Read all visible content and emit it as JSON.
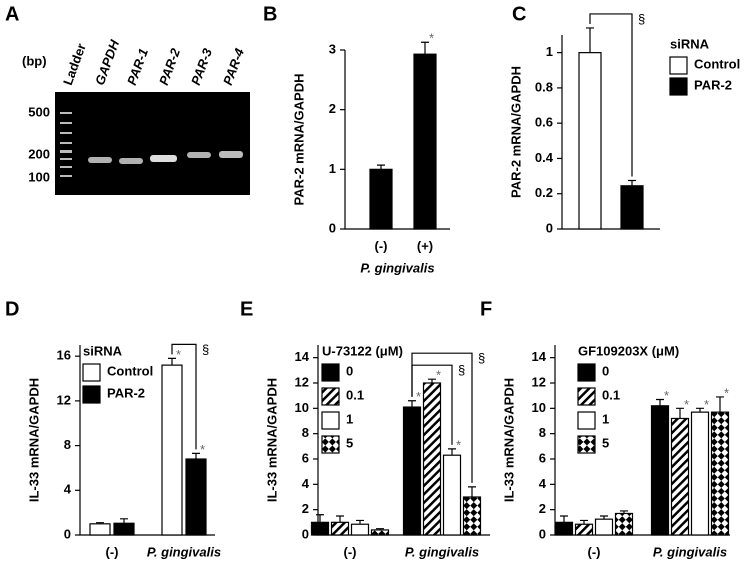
{
  "gel": {
    "panel": "A",
    "unit": "(bp)",
    "sizes": [
      "500",
      "200",
      "100"
    ],
    "lanes": [
      "Ladder",
      "GAPDH",
      "PAR-1",
      "PAR-2",
      "PAR-3",
      "PAR-4"
    ]
  },
  "chart_data": [
    {
      "type": "bar",
      "panel": "B",
      "ylabel": "PAR-2 mRNA/GAPDH",
      "xlabel": "P. gingivalis",
      "categories": [
        "(-)",
        "(+)"
      ],
      "values": [
        1.0,
        2.93
      ],
      "errors": [
        0.07,
        0.2
      ],
      "markers": [
        null,
        "*"
      ],
      "color": "#000000",
      "ylim": [
        0,
        3
      ],
      "yticks": [
        0,
        1,
        2,
        3
      ]
    },
    {
      "type": "bar",
      "panel": "C",
      "ylabel": "PAR-2 mRNA/GAPDH",
      "legend_title": "siRNA",
      "categories": [
        null
      ],
      "series": [
        {
          "name": "Control",
          "color": "#ffffff",
          "values": [
            1.0
          ],
          "errors": [
            0.14
          ]
        },
        {
          "name": "PAR-2",
          "color": "#000000",
          "values": [
            0.245
          ],
          "errors": [
            0.03
          ]
        }
      ],
      "brackets": [
        {
          "label": "§"
        }
      ],
      "ylim": [
        0,
        1.1
      ],
      "yticks": [
        0,
        0.2,
        0.4,
        0.6,
        0.8,
        1
      ]
    },
    {
      "type": "bar",
      "panel": "D",
      "ylabel": "IL-33 mRNA/GAPDH",
      "legend_title": "siRNA",
      "categories": [
        "(-)",
        "P. gingivalis"
      ],
      "series": [
        {
          "name": "Control",
          "color": "#ffffff",
          "values": [
            1.0,
            15.2
          ],
          "errors": [
            0.1,
            0.6
          ],
          "markers": [
            null,
            "*"
          ]
        },
        {
          "name": "PAR-2",
          "color": "#000000",
          "values": [
            1.05,
            6.8
          ],
          "errors": [
            0.4,
            0.5
          ],
          "markers": [
            null,
            "*"
          ]
        }
      ],
      "brackets": [
        {
          "label": "§"
        }
      ],
      "ylim": [
        0,
        17
      ],
      "yticks": [
        0,
        4,
        8,
        12,
        16
      ]
    },
    {
      "type": "bar",
      "panel": "E",
      "ylabel": "IL-33 mRNA/GAPDH",
      "legend_title": "U-73122 (μM)",
      "categories": [
        "(-)",
        "P. gingivalis"
      ],
      "series": [
        {
          "name": "0",
          "color": "#000000",
          "values": [
            1.0,
            10.1
          ],
          "errors": [
            0.6,
            0.5
          ],
          "markers": [
            null,
            "*"
          ]
        },
        {
          "name": "0.1",
          "color": "#ffffff",
          "pattern": "diagonal",
          "values": [
            1.0,
            12.0
          ],
          "errors": [
            0.5,
            0.3
          ],
          "markers": [
            null,
            "*"
          ]
        },
        {
          "name": "1",
          "color": "#ffffff",
          "values": [
            0.85,
            6.3
          ],
          "errors": [
            0.3,
            0.5
          ],
          "markers": [
            null,
            "*"
          ]
        },
        {
          "name": "5",
          "color": "#ffffff",
          "pattern": "checker",
          "values": [
            0.4,
            3.0
          ],
          "errors": [
            0.1,
            0.8
          ]
        }
      ],
      "brackets": [
        {
          "label": "§"
        },
        {
          "label": "§"
        }
      ],
      "ylim": [
        0,
        15
      ],
      "yticks": [
        0,
        2,
        4,
        6,
        8,
        10,
        12,
        14
      ]
    },
    {
      "type": "bar",
      "panel": "F",
      "ylabel": "IL-33 mRNA/GAPDH",
      "legend_title": "GF109203X (μM)",
      "categories": [
        "(-)",
        "P. gingivalis"
      ],
      "series": [
        {
          "name": "0",
          "color": "#000000",
          "values": [
            1.0,
            10.2
          ],
          "errors": [
            0.5,
            0.5
          ],
          "markers": [
            null,
            "*"
          ]
        },
        {
          "name": "0.1",
          "color": "#ffffff",
          "pattern": "diagonal",
          "values": [
            0.85,
            9.2
          ],
          "errors": [
            0.3,
            0.8
          ],
          "markers": [
            null,
            "*"
          ]
        },
        {
          "name": "1",
          "color": "#ffffff",
          "values": [
            1.25,
            9.7
          ],
          "errors": [
            0.25,
            0.3
          ],
          "markers": [
            null,
            "*"
          ]
        },
        {
          "name": "5",
          "color": "#ffffff",
          "pattern": "checker",
          "values": [
            1.7,
            9.7
          ],
          "errors": [
            0.2,
            1.2
          ],
          "markers": [
            null,
            "*"
          ]
        }
      ],
      "ylim": [
        0,
        15
      ],
      "yticks": [
        0,
        2,
        4,
        6,
        8,
        10,
        12,
        14
      ]
    }
  ]
}
